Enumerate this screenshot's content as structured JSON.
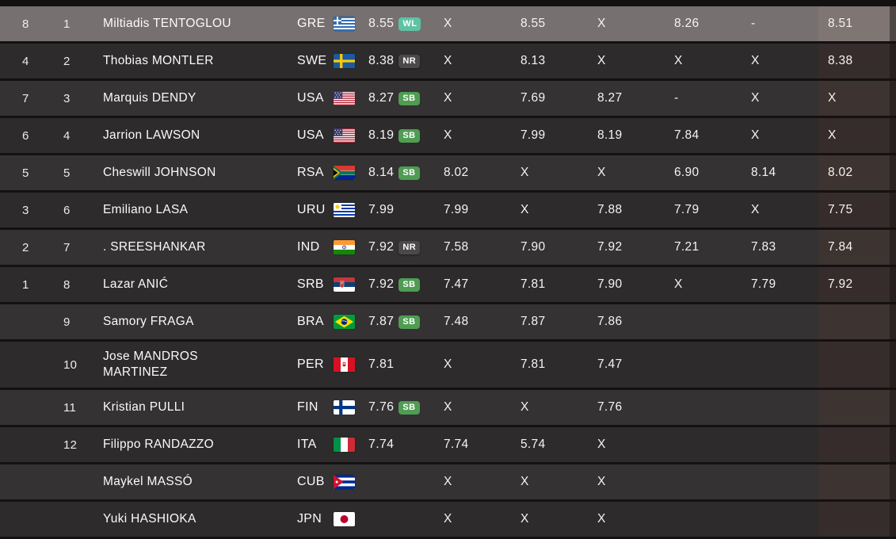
{
  "table": {
    "colors": {
      "highlight_row": "#767170",
      "row_dark": "#2d2b2b",
      "row_light": "#343232",
      "last_attempt_tint": "#362c2b",
      "badge_world_lead": "#5fc2a2",
      "badge_season_best": "#4f9c52",
      "badge_national_record": "#4b4949"
    },
    "rows": [
      {
        "order": "8",
        "place": "1",
        "name": "Miltiadis TENTOGLOU",
        "country": "GRE",
        "result": "8.55",
        "badge": "WL",
        "badge_type": "wl",
        "attempts": [
          "X",
          "8.55",
          "X",
          "8.26",
          "-",
          "8.51"
        ],
        "highlighted": true
      },
      {
        "order": "4",
        "place": "2",
        "name": "Thobias MONTLER",
        "country": "SWE",
        "result": "8.38",
        "badge": "NR",
        "badge_type": "nr",
        "attempts": [
          "X",
          "8.13",
          "X",
          "X",
          "X",
          "8.38"
        ],
        "highlighted": false
      },
      {
        "order": "7",
        "place": "3",
        "name": "Marquis DENDY",
        "country": "USA",
        "result": "8.27",
        "badge": "SB",
        "badge_type": "sb",
        "attempts": [
          "X",
          "7.69",
          "8.27",
          "-",
          "X",
          "X"
        ],
        "highlighted": false
      },
      {
        "order": "6",
        "place": "4",
        "name": "Jarrion LAWSON",
        "country": "USA",
        "result": "8.19",
        "badge": "SB",
        "badge_type": "sb",
        "attempts": [
          "X",
          "7.99",
          "8.19",
          "7.84",
          "X",
          "X"
        ],
        "highlighted": false
      },
      {
        "order": "5",
        "place": "5",
        "name": "Cheswill JOHNSON",
        "country": "RSA",
        "result": "8.14",
        "badge": "SB",
        "badge_type": "sb",
        "attempts": [
          "8.02",
          "X",
          "X",
          "6.90",
          "8.14",
          "8.02"
        ],
        "highlighted": false
      },
      {
        "order": "3",
        "place": "6",
        "name": "Emiliano LASA",
        "country": "URU",
        "result": "7.99",
        "badge": "",
        "badge_type": "",
        "attempts": [
          "7.99",
          "X",
          "7.88",
          "7.79",
          "X",
          "7.75"
        ],
        "highlighted": false
      },
      {
        "order": "2",
        "place": "7",
        "name": ". SREESHANKAR",
        "country": "IND",
        "result": "7.92",
        "badge": "NR",
        "badge_type": "nr",
        "attempts": [
          "7.58",
          "7.90",
          "7.92",
          "7.21",
          "7.83",
          "7.84"
        ],
        "highlighted": false
      },
      {
        "order": "1",
        "place": "8",
        "name": "Lazar ANIĆ",
        "country": "SRB",
        "result": "7.92",
        "badge": "SB",
        "badge_type": "sb",
        "attempts": [
          "7.47",
          "7.81",
          "7.90",
          "X",
          "7.79",
          "7.92"
        ],
        "highlighted": false
      },
      {
        "order": "",
        "place": "9",
        "name": "Samory FRAGA",
        "country": "BRA",
        "result": "7.87",
        "badge": "SB",
        "badge_type": "sb",
        "attempts": [
          "7.48",
          "7.87",
          "7.86",
          "",
          "",
          ""
        ],
        "highlighted": false
      },
      {
        "order": "",
        "place": "10",
        "name": "Jose MANDROS\nMARTINEZ",
        "country": "PER",
        "result": "7.81",
        "badge": "",
        "badge_type": "",
        "attempts": [
          "X",
          "7.81",
          "7.47",
          "",
          "",
          ""
        ],
        "highlighted": false
      },
      {
        "order": "",
        "place": "11",
        "name": "Kristian PULLI",
        "country": "FIN",
        "result": "7.76",
        "badge": "SB",
        "badge_type": "sb",
        "attempts": [
          "X",
          "X",
          "7.76",
          "",
          "",
          ""
        ],
        "highlighted": false
      },
      {
        "order": "",
        "place": "12",
        "name": "Filippo RANDAZZO",
        "country": "ITA",
        "result": "7.74",
        "badge": "",
        "badge_type": "",
        "attempts": [
          "7.74",
          "5.74",
          "X",
          "",
          "",
          ""
        ],
        "highlighted": false
      },
      {
        "order": "",
        "place": "",
        "name": "Maykel MASSÓ",
        "country": "CUB",
        "result": "",
        "badge": "",
        "badge_type": "",
        "attempts": [
          "X",
          "X",
          "X",
          "",
          "",
          ""
        ],
        "highlighted": false
      },
      {
        "order": "",
        "place": "",
        "name": "Yuki HASHIOKA",
        "country": "JPN",
        "result": "",
        "badge": "",
        "badge_type": "",
        "attempts": [
          "X",
          "X",
          "X",
          "",
          "",
          ""
        ],
        "highlighted": false
      }
    ]
  }
}
